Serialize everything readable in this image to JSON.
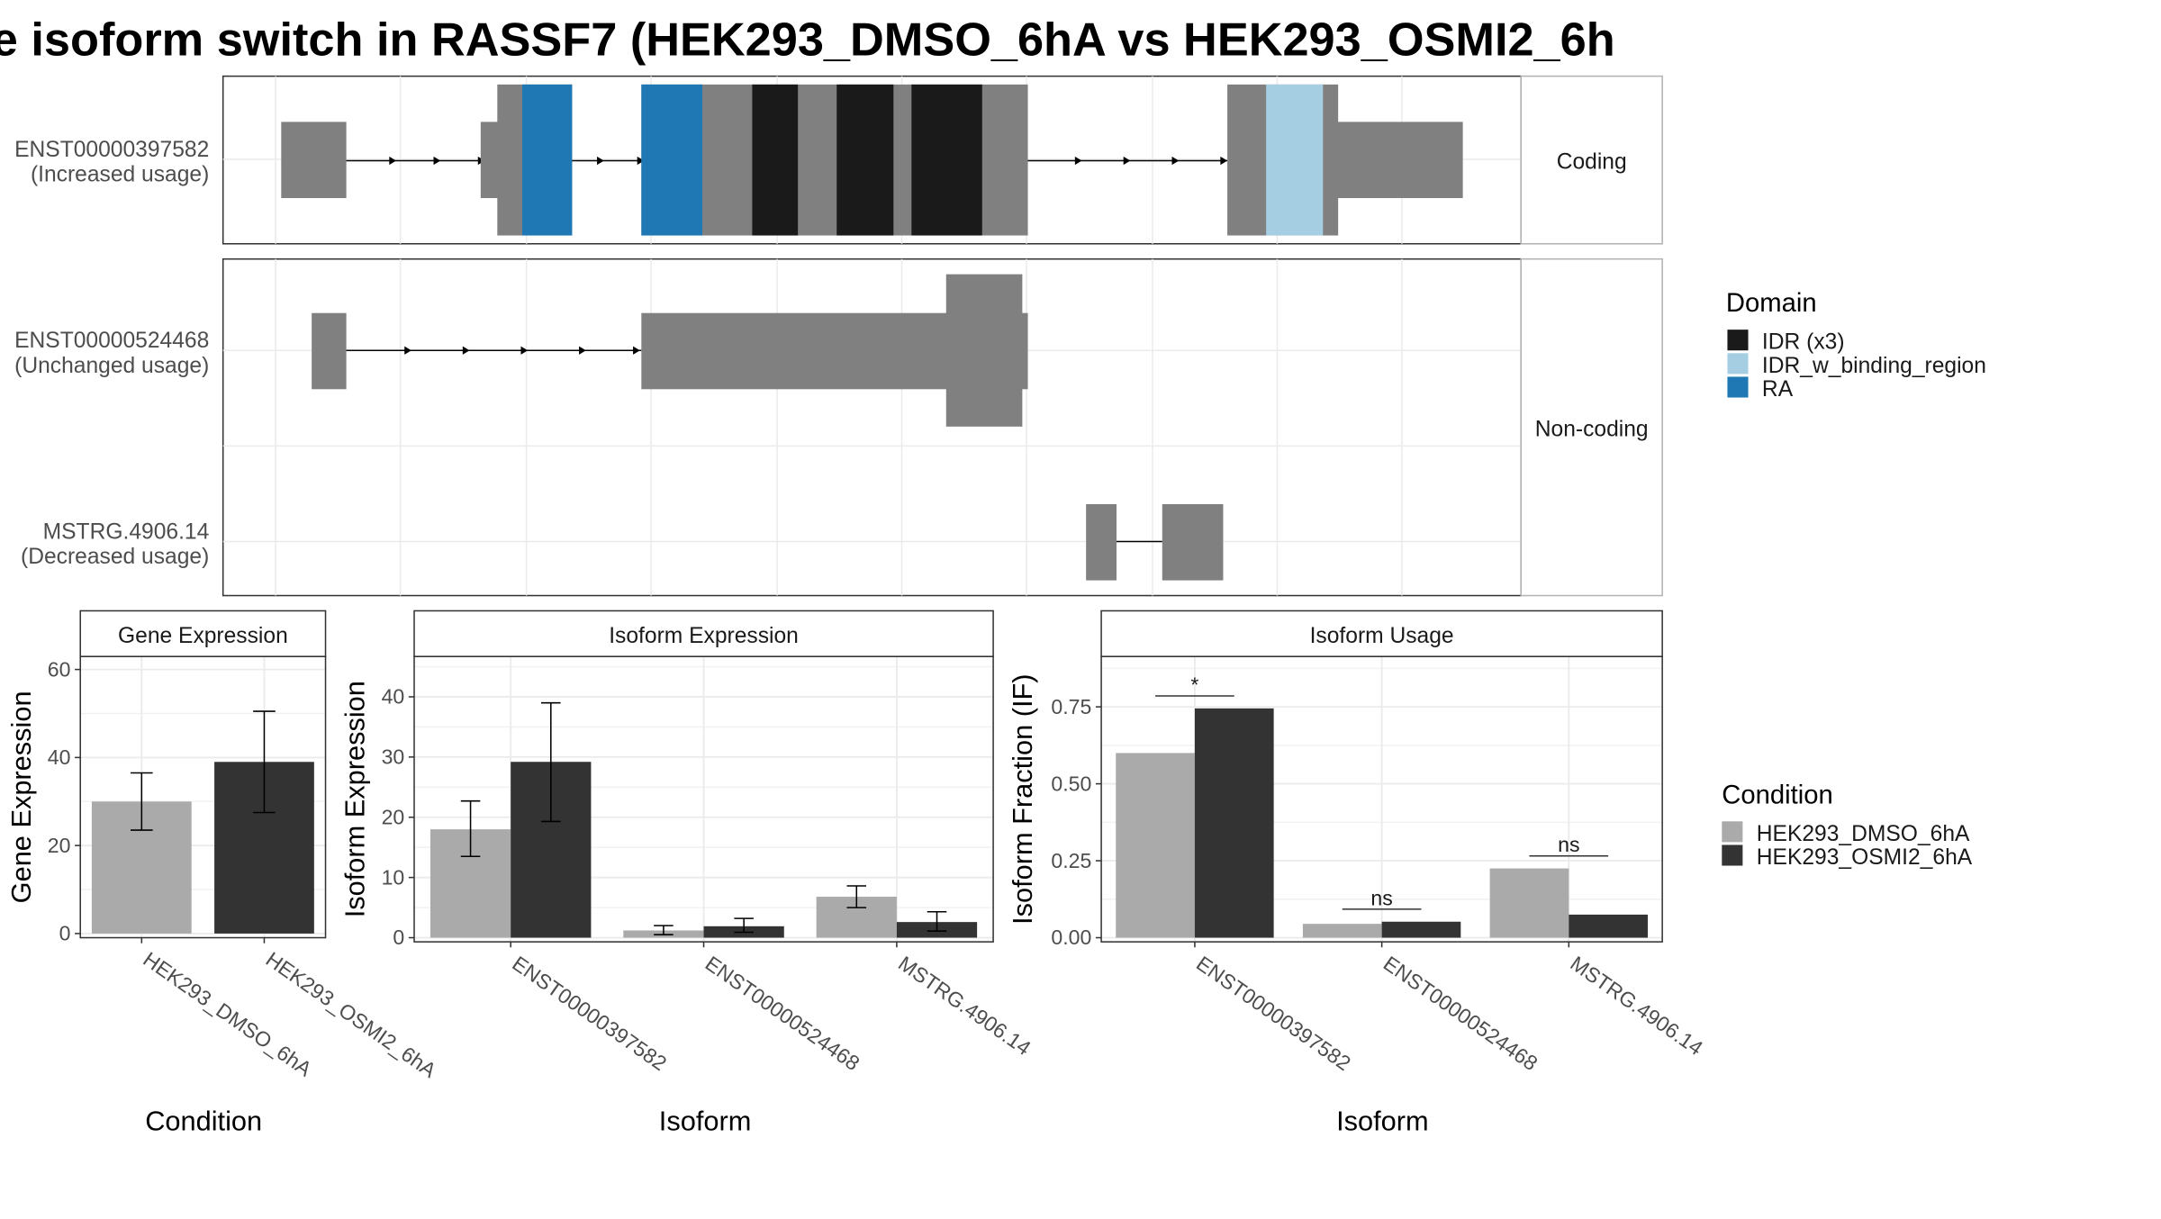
{
  "title": "e isoform switch in RASSF7 (HEK293_DMSO_6hA vs HEK293_OSMI2_6h",
  "colors": {
    "exon": "#808080",
    "IDR (x3)": "#1a1a1a",
    "IDR_w_binding_region": "#a6cee3",
    "RA": "#1f78b4",
    "HEK293_DMSO_6hA": "#aaaaaa",
    "HEK293_OSMI2_6hA": "#333333",
    "grid": "#ebebeb"
  },
  "structure": {
    "transcripts": [
      {
        "id": "ENST00000397582",
        "usage": "(Increased usage)",
        "facet": "Coding"
      },
      {
        "id": "ENST00000524468",
        "usage": "(Unchanged usage)",
        "facet": "Non-coding"
      },
      {
        "id": "MSTRG.4906.14",
        "usage": "(Decreased usage)",
        "facet": "Non-coding"
      }
    ],
    "facets": [
      "Coding",
      "Non-coding"
    ]
  },
  "legend_domain": {
    "title": "Domain",
    "items": [
      "IDR (x3)",
      "IDR_w_binding_region",
      "RA"
    ]
  },
  "legend_condition": {
    "title": "Condition",
    "items": [
      "HEK293_DMSO_6hA",
      "HEK293_OSMI2_6hA"
    ]
  },
  "chart_data": [
    {
      "type": "bar",
      "title": "Gene Expression",
      "xlabel": "Condition",
      "ylabel": "Gene Expression",
      "categories": [
        "HEK293_DMSO_6hA",
        "HEK293_OSMI2_6hA"
      ],
      "values": [
        30,
        39
      ],
      "error_low": [
        23.5,
        27.5
      ],
      "error_high": [
        36.5,
        50.5
      ],
      "ylim": [
        0,
        62
      ],
      "yticks": [
        0,
        20,
        40,
        60
      ]
    },
    {
      "type": "bar",
      "title": "Isoform Expression",
      "xlabel": "Isoform",
      "ylabel": "Isoform Expression",
      "categories": [
        "ENST00000397582",
        "ENST00000524468",
        "MSTRG.4906.14"
      ],
      "series": [
        {
          "name": "HEK293_DMSO_6hA",
          "values": [
            18,
            1.2,
            6.8
          ],
          "error_low": [
            13.5,
            0.5,
            5.0
          ],
          "error_high": [
            22.7,
            2.0,
            8.6
          ]
        },
        {
          "name": "HEK293_OSMI2_6hA",
          "values": [
            29.2,
            1.9,
            2.6
          ],
          "error_low": [
            19.3,
            0.9,
            1.1
          ],
          "error_high": [
            39.0,
            3.2,
            4.3
          ]
        }
      ],
      "ylim": [
        0,
        46
      ],
      "yticks": [
        0,
        10,
        20,
        30,
        40
      ]
    },
    {
      "type": "bar",
      "title": "Isoform Usage",
      "xlabel": "Isoform",
      "ylabel": "Isoform Fraction (IF)",
      "categories": [
        "ENST00000397582",
        "ENST00000524468",
        "MSTRG.4906.14"
      ],
      "series": [
        {
          "name": "HEK293_DMSO_6hA",
          "values": [
            0.6,
            0.045,
            0.225
          ]
        },
        {
          "name": "HEK293_OSMI2_6hA",
          "values": [
            0.745,
            0.052,
            0.075
          ]
        }
      ],
      "significance": [
        "*",
        "ns",
        "ns"
      ],
      "ylim": [
        0,
        0.9
      ],
      "yticks": [
        "0.00",
        "0.25",
        "0.50",
        "0.75"
      ]
    }
  ]
}
